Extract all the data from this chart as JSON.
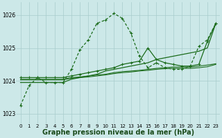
{
  "background_color": "#cce8e8",
  "grid_color": "#a8cccc",
  "line_color": "#1a6b1a",
  "xlabel": "Graphe pression niveau de la mer (hPa)",
  "xlabel_fontsize": 7,
  "ylim": [
    1022.7,
    1026.4
  ],
  "xlim": [
    -0.5,
    23.5
  ],
  "yticks": [
    1023,
    1024,
    1025,
    1026
  ],
  "xticks": [
    0,
    1,
    2,
    3,
    4,
    5,
    6,
    7,
    8,
    9,
    10,
    11,
    12,
    13,
    14,
    15,
    16,
    17,
    18,
    19,
    20,
    21,
    22,
    23
  ],
  "curve_main": [
    1023.25,
    1023.85,
    1024.1,
    1023.95,
    1023.95,
    1023.95,
    1024.35,
    1024.95,
    1025.25,
    1025.75,
    1025.85,
    1026.05,
    1025.9,
    1025.45,
    1024.75,
    1024.4,
    1024.55,
    1024.4,
    1024.35,
    1024.35,
    1024.45,
    1025.05,
    1025.25,
    1025.75
  ],
  "curve_diagonal": [
    1023.95,
    1023.95,
    1023.95,
    1023.95,
    1023.95,
    1023.95,
    1024.05,
    1024.1,
    1024.15,
    1024.2,
    1024.3,
    1024.35,
    1024.4,
    1024.45,
    1024.5,
    1024.55,
    1024.65,
    1024.7,
    1024.75,
    1024.8,
    1024.85,
    1024.9,
    1025.0,
    1025.75
  ],
  "curve_vshaped": [
    1024.1,
    1024.1,
    1024.1,
    1024.1,
    1024.1,
    1024.1,
    1024.15,
    1024.2,
    1024.25,
    1024.3,
    1024.35,
    1024.4,
    1024.5,
    1024.55,
    1024.6,
    1025.0,
    1024.65,
    1024.55,
    1024.5,
    1024.45,
    1024.45,
    1024.5,
    1025.2,
    1025.75
  ],
  "curve_flat1": [
    1024.05,
    1024.05,
    1024.05,
    1024.05,
    1024.05,
    1024.05,
    1024.1,
    1024.12,
    1024.15,
    1024.18,
    1024.2,
    1024.25,
    1024.28,
    1024.3,
    1024.32,
    1024.35,
    1024.38,
    1024.4,
    1024.42,
    1024.42,
    1024.42,
    1024.45,
    1024.48,
    1024.52
  ],
  "curve_flat2": [
    1024.03,
    1024.03,
    1024.03,
    1024.03,
    1024.03,
    1024.03,
    1024.08,
    1024.1,
    1024.12,
    1024.15,
    1024.18,
    1024.22,
    1024.25,
    1024.27,
    1024.3,
    1024.32,
    1024.35,
    1024.37,
    1024.38,
    1024.38,
    1024.38,
    1024.4,
    1024.43,
    1024.5
  ]
}
